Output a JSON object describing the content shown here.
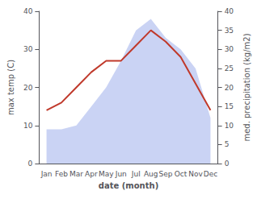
{
  "chart_data": {
    "type": "line",
    "xlabel": "date (month)",
    "ylabel": "max temp (C)",
    "y2label": "med. precipitation (kg/m2)",
    "categories": [
      "Jan",
      "Feb",
      "Mar",
      "Apr",
      "May",
      "Jun",
      "Jul",
      "Aug",
      "Sep",
      "Oct",
      "Nov",
      "Dec"
    ],
    "series": [
      {
        "type": "area",
        "axis": "y2",
        "color": "#b8c4f0",
        "values": [
          9,
          9,
          10,
          15,
          20,
          27,
          35,
          38,
          33,
          30,
          25,
          12
        ]
      },
      {
        "type": "line",
        "axis": "y",
        "color": "#c0392b",
        "values": [
          14,
          16,
          20,
          24,
          27,
          27,
          31,
          35,
          32,
          28,
          21,
          14
        ]
      }
    ],
    "ylim": [
      0,
      40
    ],
    "yticks": [
      0,
      10,
      20,
      30,
      40
    ],
    "y2lim": [
      0,
      40
    ],
    "y2ticks": [
      0,
      5,
      10,
      15,
      20,
      25,
      30,
      35,
      40
    ],
    "grid": false
  }
}
